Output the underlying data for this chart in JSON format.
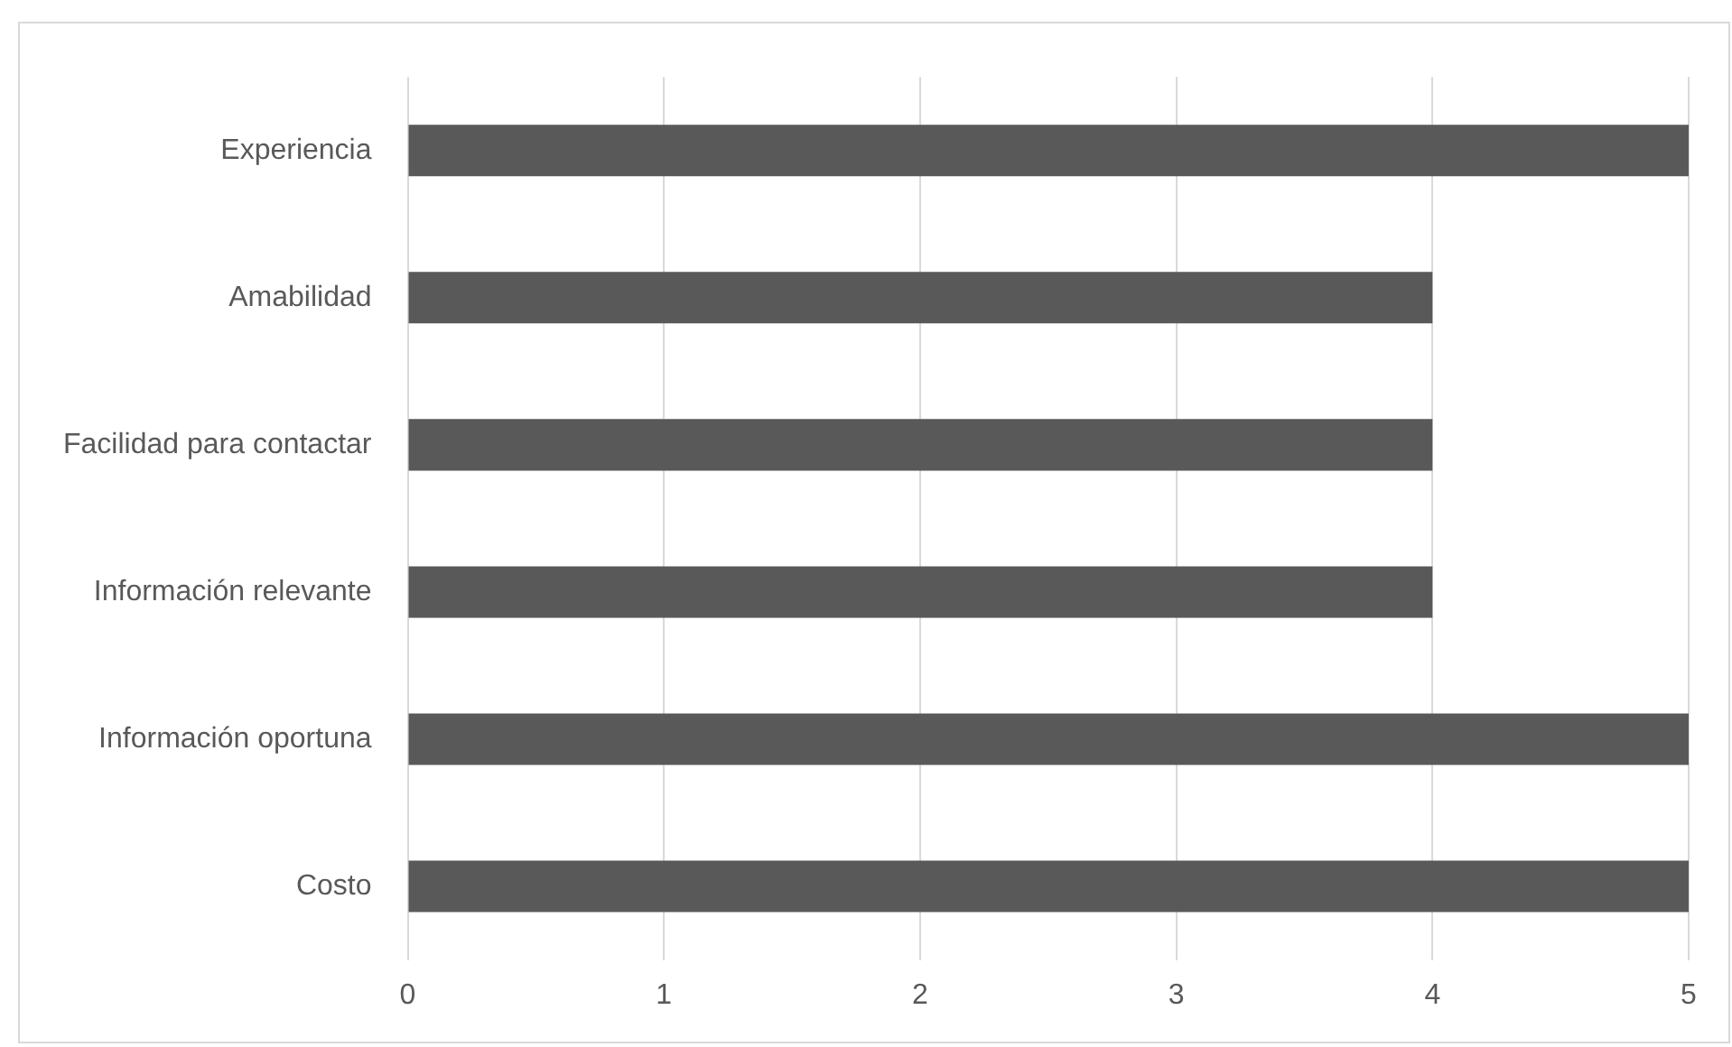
{
  "chart_data": {
    "type": "bar",
    "orientation": "horizontal",
    "categories": [
      "Experiencia",
      "Amabilidad",
      "Facilidad para contactar",
      "Información relevante",
      "Información oportuna",
      "Costo"
    ],
    "values": [
      5,
      4,
      4,
      4,
      5,
      5
    ],
    "color": "#595959",
    "xlim": [
      0,
      5
    ],
    "xticks": [
      0,
      1,
      2,
      3,
      4,
      5
    ],
    "grid": "x",
    "legend": false
  }
}
